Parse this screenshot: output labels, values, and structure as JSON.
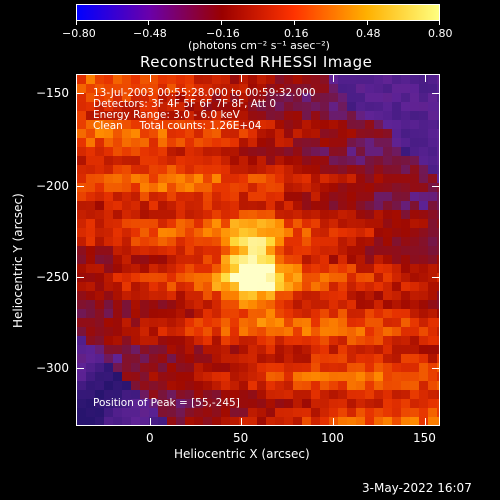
{
  "colorbar": {
    "tick_labels": [
      "−0.80",
      "−0.48",
      "−0.16",
      "0.16",
      "0.48",
      "0.80"
    ],
    "units_label": "(photons cm⁻² s⁻¹ asec⁻²)",
    "colors": [
      "#0000ff",
      "#6a00aa",
      "#9a0000",
      "#ff3300",
      "#ffb000",
      "#ffff80"
    ]
  },
  "plot": {
    "title": "Reconstructed RHESSI Image",
    "x_axis_label": "Heliocentric X (arcsec)",
    "y_axis_label": "Heliocentric Y (arcsec)",
    "x_ticks": [
      "0",
      "50",
      "100",
      "150"
    ],
    "y_ticks": [
      "−150",
      "−200",
      "−250",
      "−300"
    ]
  },
  "info": {
    "line1": "13-Jul-2003 00:55:28.000 to 00:59:32.000",
    "line2": "Detectors: 3F 4F 5F 6F 7F 8F, Att 0",
    "line3": "Energy Range: 3.0 - 6.0 keV",
    "line4": "Clean     Total counts: 1.26E+04",
    "peak": "Position of Peak = [55,-245]"
  },
  "footer": {
    "timestamp": "3-May-2022 16:07"
  }
}
